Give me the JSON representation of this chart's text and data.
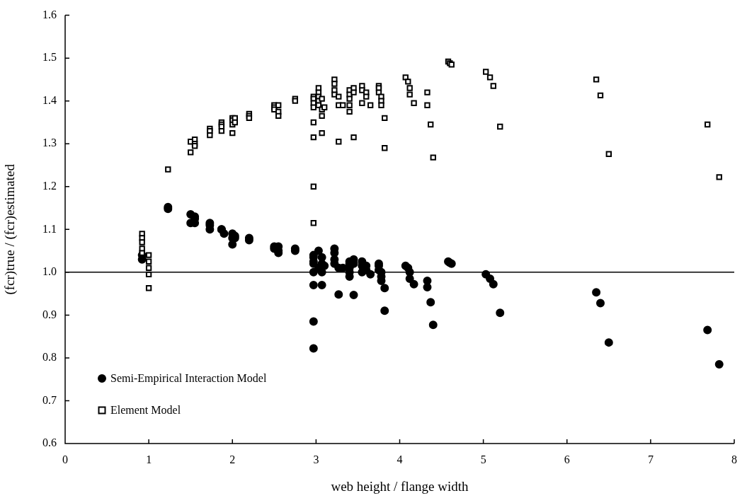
{
  "chart_data": {
    "type": "scatter",
    "xlabel": "web height / flange width",
    "ylabel": "(fcr)true / (fcr)estimated",
    "xlim": [
      0,
      8
    ],
    "xticks": [
      0,
      1,
      2,
      3,
      4,
      5,
      6,
      7,
      8
    ],
    "ylim": [
      0.6,
      1.6
    ],
    "yticks": [
      0.6,
      0.7,
      0.8,
      0.9,
      {
        "value": 1,
        "label": "1.0"
      },
      1.1,
      1.2,
      1.3,
      1.4,
      1.5,
      1.6
    ],
    "grid": false,
    "legend": "bottom left",
    "ref_lines": [
      {
        "axis": "y",
        "value": 1.0,
        "color": "#000000"
      }
    ],
    "series": [
      {
        "name": "Semi-Empirical Interaction Model",
        "color": "#000000",
        "marker": "circle",
        "x": [
          0.92,
          0.92,
          1.23,
          1.23,
          1.5,
          1.5,
          1.55,
          1.55,
          1.55,
          1.73,
          1.73,
          1.73,
          1.87,
          1.87,
          1.9,
          2.0,
          2.0,
          2.0,
          2.03,
          2.03,
          2.2,
          2.2,
          2.5,
          2.5,
          2.55,
          2.55,
          2.55,
          2.75,
          2.75,
          2.97,
          2.97,
          2.97,
          2.97,
          2.97,
          2.97,
          2.97,
          2.97,
          3.03,
          3.03,
          3.07,
          3.07,
          3.07,
          3.07,
          3.1,
          3.22,
          3.22,
          3.22,
          3.22,
          3.27,
          3.27,
          3.32,
          3.4,
          3.4,
          3.4,
          3.4,
          3.4,
          3.45,
          3.45,
          3.45,
          3.55,
          3.55,
          3.55,
          3.6,
          3.6,
          3.65,
          3.75,
          3.75,
          3.75,
          3.78,
          3.78,
          3.78,
          3.82,
          3.82,
          4.07,
          4.1,
          4.12,
          4.12,
          4.17,
          4.33,
          4.33,
          4.37,
          4.4,
          4.58,
          4.6,
          4.62,
          5.03,
          5.08,
          5.12,
          5.2,
          6.35,
          6.4,
          6.5,
          7.68,
          7.82
        ],
        "values": [
          1.04,
          1.03,
          1.152,
          1.148,
          1.135,
          1.115,
          1.13,
          1.125,
          1.115,
          1.115,
          1.11,
          1.1,
          1.1,
          1.1,
          1.09,
          1.09,
          1.08,
          1.065,
          1.085,
          1.08,
          1.08,
          1.075,
          1.06,
          1.055,
          1.06,
          1.05,
          1.045,
          1.055,
          1.05,
          1.04,
          1.035,
          1.025,
          1.02,
          1.0,
          0.97,
          0.885,
          0.822,
          1.05,
          1.01,
          1.035,
          1.02,
          1.0,
          0.97,
          1.015,
          1.055,
          1.045,
          1.03,
          1.02,
          1.01,
          0.948,
          1.01,
          1.025,
          1.02,
          1.01,
          1.0,
          0.99,
          1.03,
          1.02,
          0.947,
          1.025,
          1.015,
          1.0,
          1.015,
          1.005,
          0.995,
          1.02,
          1.015,
          1.005,
          1.0,
          0.99,
          0.98,
          0.963,
          0.91,
          1.015,
          1.01,
          1.0,
          0.985,
          0.972,
          0.98,
          0.965,
          0.93,
          0.877,
          1.025,
          1.022,
          1.02,
          0.995,
          0.985,
          0.972,
          0.905,
          0.953,
          0.928,
          0.836,
          0.865,
          0.785
        ]
      },
      {
        "name": "Element Model",
        "color": "#000000",
        "marker": "square",
        "x": [
          0.92,
          0.92,
          0.92,
          0.92,
          0.92,
          1.0,
          1.0,
          1.0,
          1.0,
          1.0,
          1.23,
          1.5,
          1.5,
          1.55,
          1.55,
          1.55,
          1.73,
          1.73,
          1.73,
          1.87,
          1.87,
          1.87,
          1.87,
          2.0,
          2.0,
          2.0,
          2.0,
          2.03,
          2.03,
          2.2,
          2.2,
          2.2,
          2.5,
          2.5,
          2.5,
          2.55,
          2.55,
          2.55,
          2.75,
          2.75,
          2.97,
          2.97,
          2.97,
          2.97,
          2.97,
          2.97,
          2.97,
          2.97,
          3.03,
          3.03,
          3.03,
          3.03,
          3.03,
          3.07,
          3.07,
          3.07,
          3.07,
          3.1,
          3.22,
          3.22,
          3.22,
          3.22,
          3.27,
          3.27,
          3.27,
          3.32,
          3.4,
          3.4,
          3.4,
          3.4,
          3.4,
          3.45,
          3.45,
          3.45,
          3.55,
          3.55,
          3.55,
          3.6,
          3.6,
          3.65,
          3.75,
          3.75,
          3.75,
          3.78,
          3.78,
          3.78,
          3.82,
          3.82,
          4.07,
          4.1,
          4.12,
          4.12,
          4.17,
          4.33,
          4.33,
          4.37,
          4.4,
          4.58,
          4.6,
          4.62,
          5.03,
          5.08,
          5.12,
          5.2,
          6.35,
          6.4,
          6.5,
          7.68,
          7.82
        ],
        "values": [
          1.09,
          1.08,
          1.07,
          1.055,
          1.045,
          1.04,
          1.025,
          1.01,
          0.995,
          0.963,
          1.24,
          1.305,
          1.28,
          1.31,
          1.3,
          1.295,
          1.335,
          1.33,
          1.32,
          1.35,
          1.345,
          1.34,
          1.33,
          1.36,
          1.355,
          1.345,
          1.325,
          1.36,
          1.35,
          1.37,
          1.365,
          1.36,
          1.39,
          1.385,
          1.38,
          1.39,
          1.375,
          1.365,
          1.405,
          1.4,
          1.41,
          1.405,
          1.395,
          1.385,
          1.35,
          1.315,
          1.2,
          1.115,
          1.43,
          1.42,
          1.41,
          1.4,
          1.39,
          1.405,
          1.38,
          1.365,
          1.325,
          1.385,
          1.45,
          1.44,
          1.425,
          1.415,
          1.41,
          1.39,
          1.305,
          1.39,
          1.425,
          1.415,
          1.405,
          1.39,
          1.375,
          1.43,
          1.42,
          1.315,
          1.435,
          1.425,
          1.395,
          1.42,
          1.41,
          1.39,
          1.435,
          1.43,
          1.42,
          1.41,
          1.4,
          1.39,
          1.36,
          1.29,
          1.455,
          1.445,
          1.43,
          1.415,
          1.395,
          1.42,
          1.39,
          1.345,
          1.268,
          1.492,
          1.488,
          1.485,
          1.468,
          1.455,
          1.435,
          1.34,
          1.45,
          1.413,
          1.276,
          1.345,
          1.222
        ]
      }
    ]
  }
}
